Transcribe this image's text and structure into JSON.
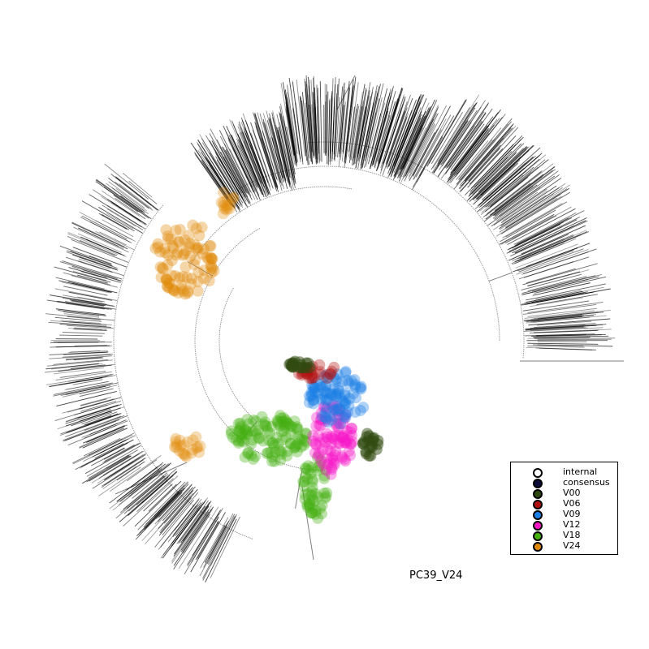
{
  "label": "PC39_V24",
  "legend": [
    {
      "name": "internal",
      "color": "#ffffff"
    },
    {
      "name": "consensus",
      "color": "#0b0b3a"
    },
    {
      "name": "V00",
      "color": "#2f4a10"
    },
    {
      "name": "V06",
      "color": "#b30f0f"
    },
    {
      "name": "V09",
      "color": "#1a7fe6"
    },
    {
      "name": "V12",
      "color": "#f516c8"
    },
    {
      "name": "V18",
      "color": "#45b010"
    },
    {
      "name": "V24",
      "color": "#e08a0a"
    }
  ],
  "colors": {
    "branch": "#000000",
    "V00": "#2f4a10",
    "V06": "#b30f0f",
    "V09": "#1a7fe6",
    "V12": "#f516c8",
    "V18": "#45b010",
    "V24": "#e08a0a"
  }
}
